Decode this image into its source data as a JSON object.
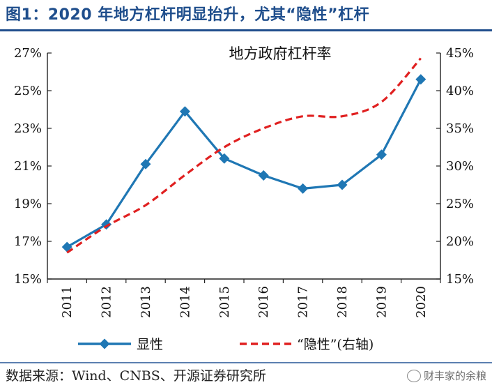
{
  "figure": {
    "title": "图1：2020 年地方杠杆明显抬升，尤其“隐性”杠杆",
    "source": "数据来源：Wind、CNBS、开源证券研究所",
    "watermark": "财丰家的余粮"
  },
  "chart_data": {
    "type": "line",
    "title": "地方政府杠杆率",
    "x": [
      "2011",
      "2012",
      "2013",
      "2014",
      "2015",
      "2016",
      "2017",
      "2018",
      "2019",
      "2020"
    ],
    "series": [
      {
        "name": "显性",
        "axis": "left",
        "color": "#1f77b4",
        "marker": "diamond",
        "style": "solid",
        "values": [
          16.7,
          17.9,
          21.1,
          23.9,
          21.4,
          20.5,
          19.8,
          20.0,
          21.6,
          25.6
        ]
      },
      {
        "name": "“隐性”(右轴)",
        "axis": "right",
        "color": "#e02020",
        "marker": "none",
        "style": "dashed",
        "values": [
          18.5,
          22.0,
          24.8,
          28.8,
          32.5,
          35.0,
          36.6,
          36.6,
          38.5,
          44.3
        ]
      }
    ],
    "y_left": {
      "ylim": [
        15,
        27
      ],
      "ticks": [
        15,
        17,
        19,
        21,
        23,
        25,
        27
      ],
      "tick_labels": [
        "15%",
        "17%",
        "19%",
        "21%",
        "23%",
        "25%",
        "27%"
      ]
    },
    "y_right": {
      "ylim": [
        15,
        45
      ],
      "ticks": [
        15,
        20,
        25,
        30,
        35,
        40,
        45
      ],
      "tick_labels": [
        "15%",
        "20%",
        "25%",
        "30%",
        "35%",
        "40%",
        "45%"
      ]
    },
    "xlabel": "",
    "ylabel": "",
    "grid": false,
    "legend": "bottom"
  }
}
